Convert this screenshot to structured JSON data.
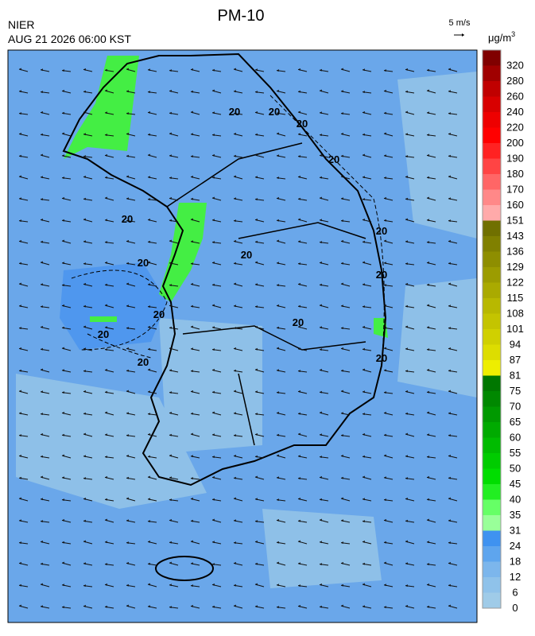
{
  "header": {
    "title": "PM-10",
    "agency": "NIER",
    "datetime": "AUG 21 2026 06:00 KST"
  },
  "wind_scale": {
    "label": "5 m/s"
  },
  "legend": {
    "unit": "μg/m",
    "unit_exp": "3",
    "items": [
      {
        "label": "0",
        "color": "#9fcbe8"
      },
      {
        "label": "6",
        "color": "#8fc2ea"
      },
      {
        "label": "12",
        "color": "#7cb6ec"
      },
      {
        "label": "18",
        "color": "#5ea5ee"
      },
      {
        "label": "24",
        "color": "#3f92f0"
      },
      {
        "label": "31",
        "color": "#99ff99"
      },
      {
        "label": "35",
        "color": "#66ff66"
      },
      {
        "label": "40",
        "color": "#22ee22"
      },
      {
        "label": "45",
        "color": "#00dd00"
      },
      {
        "label": "50",
        "color": "#00cc00"
      },
      {
        "label": "55",
        "color": "#00bb00"
      },
      {
        "label": "60",
        "color": "#00aa00"
      },
      {
        "label": "65",
        "color": "#009900"
      },
      {
        "label": "70",
        "color": "#008800"
      },
      {
        "label": "75",
        "color": "#007700"
      },
      {
        "label": "81",
        "color": "#eeee00"
      },
      {
        "label": "87",
        "color": "#dddd00"
      },
      {
        "label": "94",
        "color": "#d0d000"
      },
      {
        "label": "101",
        "color": "#c4c400"
      },
      {
        "label": "108",
        "color": "#b8b800"
      },
      {
        "label": "115",
        "color": "#aaaa00"
      },
      {
        "label": "122",
        "color": "#9c9c00"
      },
      {
        "label": "129",
        "color": "#8e8e00"
      },
      {
        "label": "136",
        "color": "#808000"
      },
      {
        "label": "143",
        "color": "#707000"
      },
      {
        "label": "151",
        "color": "#ffaaaa"
      },
      {
        "label": "160",
        "color": "#ff8888"
      },
      {
        "label": "170",
        "color": "#ff6666"
      },
      {
        "label": "180",
        "color": "#ff4444"
      },
      {
        "label": "190",
        "color": "#ff2222"
      },
      {
        "label": "200",
        "color": "#ff0000"
      },
      {
        "label": "220",
        "color": "#ee0000"
      },
      {
        "label": "240",
        "color": "#d80000"
      },
      {
        "label": "260",
        "color": "#c00000"
      },
      {
        "label": "280",
        "color": "#a00000"
      },
      {
        "label": "320",
        "color": "#800000"
      }
    ]
  },
  "map": {
    "contour_labels": [
      "20",
      "20",
      "20",
      "20",
      "20",
      "20",
      "20",
      "20",
      "20",
      "20",
      "20",
      "20",
      "20",
      "20"
    ]
  }
}
